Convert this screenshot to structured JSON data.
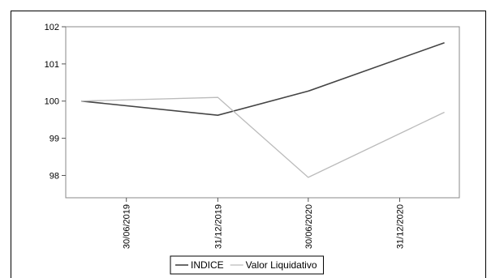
{
  "chart_data": {
    "type": "line",
    "x": [
      "30/06/2019",
      "31/12/2019",
      "30/06/2020",
      "31/12/2020"
    ],
    "series": [
      {
        "name": "INDICE",
        "color": "#444444",
        "points": [
          {
            "x": "2019-03-31",
            "y": 100.0
          },
          {
            "x": "2019-12-31",
            "y": 99.62
          },
          {
            "x": "2020-06-30",
            "y": 100.27
          },
          {
            "x": "2021-03-31",
            "y": 101.57
          }
        ]
      },
      {
        "name": "Valor Liquidativo",
        "color": "#bbbbbb",
        "points": [
          {
            "x": "2019-03-31",
            "y": 100.0
          },
          {
            "x": "2019-12-31",
            "y": 100.1
          },
          {
            "x": "2020-06-30",
            "y": 97.95
          },
          {
            "x": "2021-03-31",
            "y": 99.7
          }
        ]
      }
    ],
    "y_ticks": [
      98,
      99,
      100,
      101,
      102
    ],
    "ylim": [
      97.4,
      102.0
    ],
    "xlim": [
      "2019-02-28",
      "2021-04-30"
    ],
    "legend": "bottom"
  }
}
